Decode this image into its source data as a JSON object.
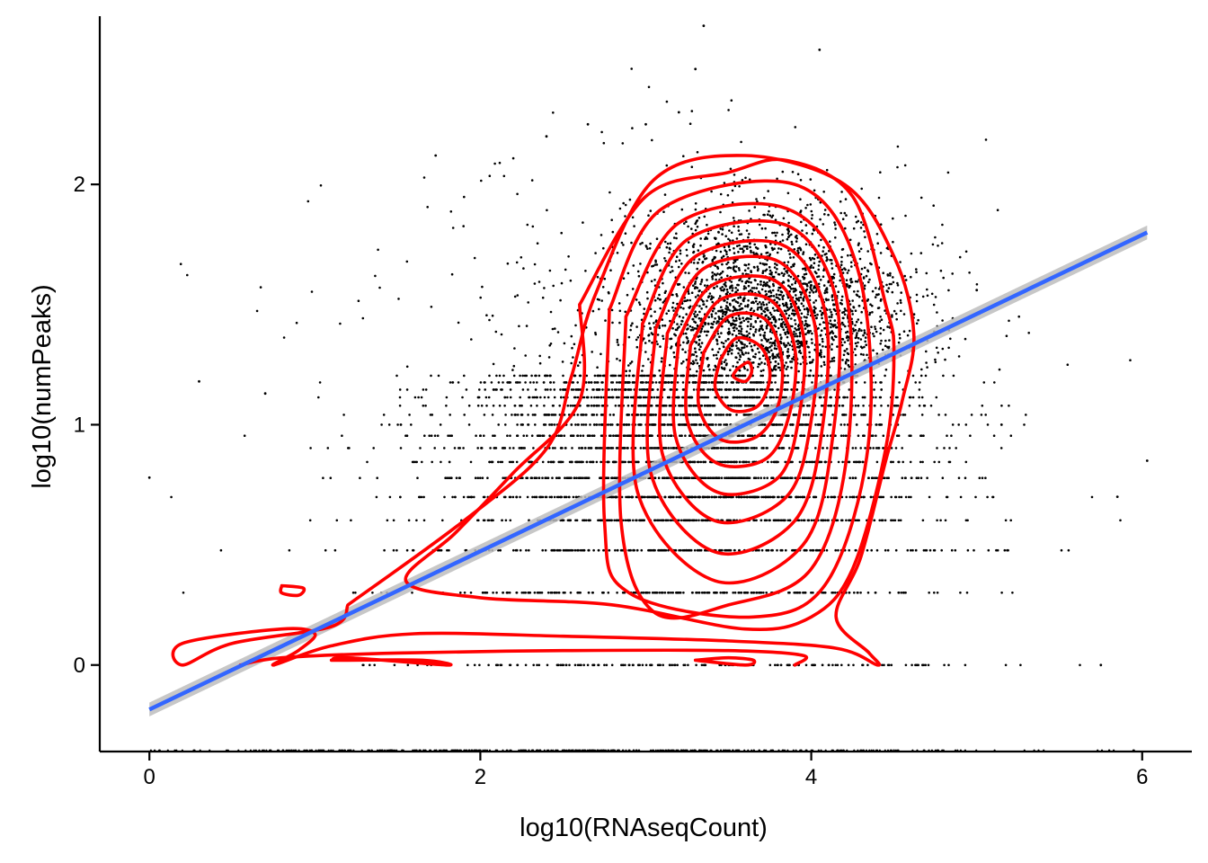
{
  "chart_data": {
    "type": "scatter",
    "title": "",
    "xlabel": "log10(RNAseqCount)",
    "ylabel": "log10(numPeaks)",
    "xlim": [
      -0.3,
      6.3
    ],
    "ylim": [
      -0.36,
      2.7
    ],
    "x_ticks": [
      {
        "value": 0,
        "label": "0"
      },
      {
        "value": 2,
        "label": "2"
      },
      {
        "value": 4,
        "label": "4"
      },
      {
        "value": 6,
        "label": "6"
      }
    ],
    "y_ticks": [
      {
        "value": 0,
        "label": "0"
      },
      {
        "value": 1,
        "label": "1"
      },
      {
        "value": 2,
        "label": "2"
      }
    ],
    "grid": false,
    "legend": "none",
    "colors": {
      "points": "#000000",
      "contours": "#ff0000",
      "fit_line": "#3366ff",
      "fit_band": "#bdbdbd"
    },
    "scatter": {
      "description_levels_y": [
        0,
        0.301,
        0.477,
        0.602,
        0.699,
        0.778,
        0.845,
        0.903,
        0.954,
        1.0,
        1.041,
        1.079,
        1.114,
        1.146,
        1.176,
        1.204
      ],
      "x_center": 3.6,
      "y_center": 1.3,
      "x_range": [
        0,
        6.05
      ],
      "y_range": [
        -0.36,
        2.68
      ],
      "sample_points": [
        {
          "x": 3.35,
          "y": 2.66
        },
        {
          "x": 4.05,
          "y": 2.56
        },
        {
          "x": 3.3,
          "y": 2.48
        },
        {
          "x": 5.0,
          "y": 1.56
        },
        {
          "x": 6.03,
          "y": 0.85
        },
        {
          "x": 5.85,
          "y": 0.7
        },
        {
          "x": 5.75,
          "y": 0.0
        },
        {
          "x": 0.0,
          "y": 0.78
        },
        {
          "x": 0.3,
          "y": 1.18
        },
        {
          "x": 0.7,
          "y": 1.13
        },
        {
          "x": 1.73,
          "y": 2.12
        },
        {
          "x": 2.4,
          "y": 2.2
        },
        {
          "x": 3.2,
          "y": 2.3
        },
        {
          "x": 3.0,
          "y": 2.25
        },
        {
          "x": 2.65,
          "y": 2.25
        }
      ]
    },
    "fit_line": {
      "x": [
        0,
        6.03
      ],
      "y": [
        -0.185,
        1.8
      ]
    },
    "contours": [
      [
        [
          3.55,
          1.23
        ],
        [
          3.62,
          1.26
        ],
        [
          3.64,
          1.22
        ],
        [
          3.6,
          1.18
        ],
        [
          3.53,
          1.2
        ],
        [
          3.55,
          1.23
        ]
      ],
      [
        [
          3.45,
          1.27
        ],
        [
          3.55,
          1.36
        ],
        [
          3.7,
          1.32
        ],
        [
          3.75,
          1.2
        ],
        [
          3.68,
          1.08
        ],
        [
          3.52,
          1.06
        ],
        [
          3.42,
          1.15
        ],
        [
          3.45,
          1.27
        ]
      ],
      [
        [
          3.35,
          1.3
        ],
        [
          3.5,
          1.45
        ],
        [
          3.72,
          1.44
        ],
        [
          3.82,
          1.28
        ],
        [
          3.8,
          1.08
        ],
        [
          3.67,
          0.95
        ],
        [
          3.45,
          0.94
        ],
        [
          3.32,
          1.08
        ],
        [
          3.35,
          1.3
        ]
      ],
      [
        [
          3.27,
          1.33
        ],
        [
          3.45,
          1.52
        ],
        [
          3.75,
          1.52
        ],
        [
          3.9,
          1.32
        ],
        [
          3.87,
          1.05
        ],
        [
          3.73,
          0.86
        ],
        [
          3.43,
          0.84
        ],
        [
          3.25,
          1.02
        ],
        [
          3.27,
          1.33
        ]
      ],
      [
        [
          3.2,
          1.36
        ],
        [
          3.4,
          1.58
        ],
        [
          3.78,
          1.6
        ],
        [
          3.95,
          1.38
        ],
        [
          3.93,
          1.05
        ],
        [
          3.8,
          0.78
        ],
        [
          3.43,
          0.72
        ],
        [
          3.18,
          0.95
        ],
        [
          3.2,
          1.36
        ]
      ],
      [
        [
          3.13,
          1.38
        ],
        [
          3.35,
          1.65
        ],
        [
          3.8,
          1.68
        ],
        [
          4.02,
          1.42
        ],
        [
          4.0,
          1.02
        ],
        [
          3.85,
          0.7
        ],
        [
          3.42,
          0.6
        ],
        [
          3.1,
          0.88
        ],
        [
          3.13,
          1.38
        ]
      ],
      [
        [
          3.06,
          1.4
        ],
        [
          3.3,
          1.7
        ],
        [
          3.82,
          1.75
        ],
        [
          4.08,
          1.48
        ],
        [
          4.07,
          1.0
        ],
        [
          3.9,
          0.6
        ],
        [
          3.42,
          0.47
        ],
        [
          3.03,
          0.8
        ],
        [
          3.06,
          1.4
        ]
      ],
      [
        [
          2.98,
          1.42
        ],
        [
          3.25,
          1.77
        ],
        [
          3.85,
          1.83
        ],
        [
          4.15,
          1.52
        ],
        [
          4.13,
          0.95
        ],
        [
          3.95,
          0.5
        ],
        [
          3.42,
          0.35
        ],
        [
          2.95,
          0.72
        ],
        [
          2.98,
          1.42
        ]
      ],
      [
        [
          2.88,
          1.45
        ],
        [
          3.2,
          1.84
        ],
        [
          3.85,
          1.9
        ],
        [
          4.2,
          1.58
        ],
        [
          4.22,
          0.9
        ],
        [
          4.0,
          0.4
        ],
        [
          3.5,
          0.25
        ],
        [
          3.05,
          0.22
        ],
        [
          2.85,
          0.6
        ],
        [
          2.88,
          1.45
        ]
      ],
      [
        [
          2.78,
          1.48
        ],
        [
          3.1,
          1.9
        ],
        [
          3.9,
          2.0
        ],
        [
          4.28,
          1.65
        ],
        [
          4.35,
          0.95
        ],
        [
          4.1,
          0.35
        ],
        [
          3.65,
          0.2
        ],
        [
          2.9,
          0.3
        ],
        [
          2.75,
          0.6
        ],
        [
          2.78,
          1.48
        ]
      ],
      [
        [
          2.6,
          1.5
        ],
        [
          3.0,
          1.95
        ],
        [
          3.5,
          2.05
        ],
        [
          3.85,
          2.1
        ],
        [
          4.25,
          1.95
        ],
        [
          4.45,
          1.5
        ],
        [
          4.5,
          1.3
        ],
        [
          4.45,
          0.9
        ],
        [
          4.25,
          0.4
        ],
        [
          4.0,
          0.2
        ],
        [
          3.6,
          0.15
        ],
        [
          2.8,
          0.25
        ],
        [
          2.0,
          0.28
        ],
        [
          1.55,
          0.35
        ],
        [
          1.85,
          0.55
        ],
        [
          2.2,
          0.8
        ],
        [
          2.6,
          1.1
        ],
        [
          2.6,
          1.5
        ]
      ],
      [
        [
          1.2,
          0.25
        ],
        [
          1.9,
          0.6
        ],
        [
          2.4,
          0.9
        ],
        [
          2.55,
          1.2
        ],
        [
          2.7,
          1.55
        ],
        [
          3.05,
          2.02
        ],
        [
          3.6,
          2.12
        ],
        [
          4.2,
          2.0
        ],
        [
          4.5,
          1.7
        ],
        [
          4.62,
          1.38
        ],
        [
          4.55,
          1.1
        ],
        [
          4.45,
          0.85
        ],
        [
          4.3,
          0.45
        ],
        [
          4.15,
          0.2
        ],
        [
          4.35,
          0.05
        ],
        [
          4.4,
          0.0
        ],
        [
          4.15,
          0.07
        ],
        [
          3.5,
          0.1
        ],
        [
          2.5,
          0.12
        ],
        [
          1.6,
          0.13
        ],
        [
          1.1,
          0.08
        ],
        [
          0.75,
          0.0
        ],
        [
          0.9,
          0.06
        ],
        [
          1.0,
          0.13
        ],
        [
          0.8,
          0.15
        ],
        [
          0.2,
          0.09
        ],
        [
          0.2,
          0.0
        ],
        [
          0.5,
          0.09
        ],
        [
          1.1,
          0.16
        ],
        [
          1.2,
          0.25
        ]
      ],
      [
        [
          0.8,
          0.33
        ],
        [
          0.93,
          0.32
        ],
        [
          0.9,
          0.29
        ],
        [
          0.8,
          0.3
        ],
        [
          0.8,
          0.33
        ]
      ],
      [
        [
          1.1,
          0.02
        ],
        [
          1.2,
          0.03
        ],
        [
          1.8,
          0.0
        ],
        [
          1.65,
          0.02
        ],
        [
          1.2,
          0.02
        ],
        [
          1.1,
          0.02
        ]
      ],
      [
        [
          3.3,
          0.02
        ],
        [
          3.5,
          0.03
        ],
        [
          3.65,
          0.02
        ],
        [
          3.6,
          0.0
        ],
        [
          3.3,
          0.02
        ]
      ],
      [
        [
          0.55,
          0.0
        ],
        [
          0.8,
          0.03
        ],
        [
          1.5,
          0.05
        ],
        [
          2.5,
          0.06
        ],
        [
          3.5,
          0.06
        ],
        [
          3.95,
          0.04
        ],
        [
          3.9,
          0.0
        ]
      ]
    ]
  }
}
